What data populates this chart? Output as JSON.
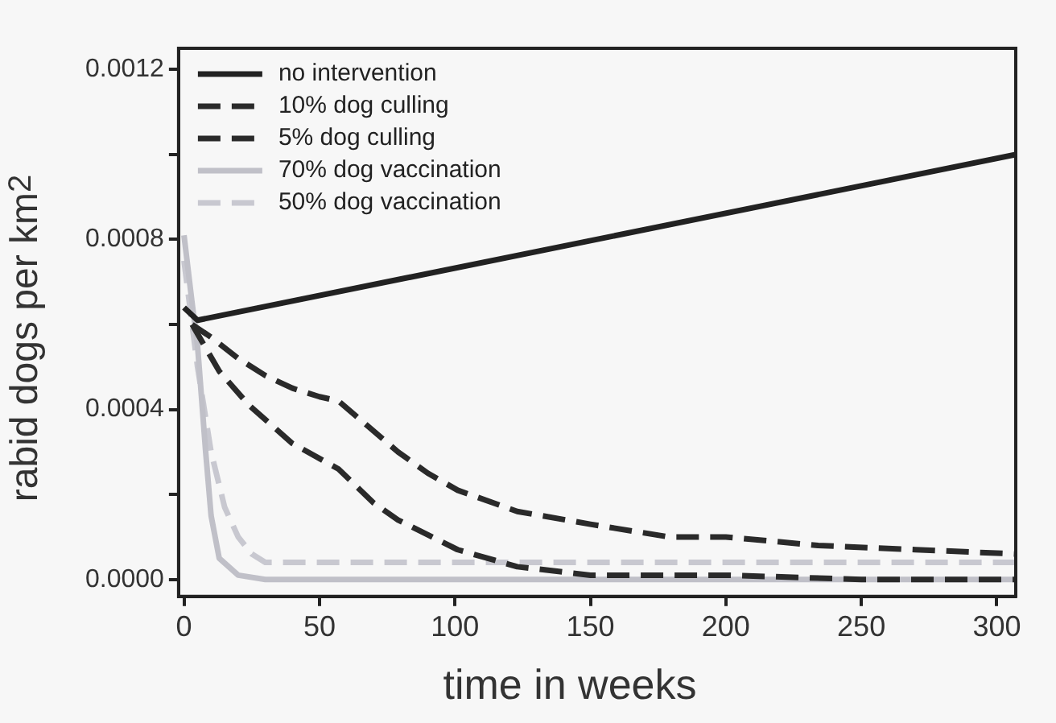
{
  "chart_data": {
    "type": "line",
    "xlabel": "time in weeks",
    "ylabel": "rabid dogs per km$^{2}$",
    "xlim": [
      -2,
      307
    ],
    "xticks": [
      0,
      50,
      100,
      150,
      200,
      250,
      300
    ],
    "ylim": [
      -4e-05,
      0.00125
    ],
    "yticks": [
      {
        "value": 0,
        "label": "0.0000"
      },
      {
        "value": 0.0002,
        "label": null
      },
      {
        "value": 0.0004,
        "label": "0.0004"
      },
      {
        "value": 0.0006,
        "label": null
      },
      {
        "value": 0.0008,
        "label": "0.0008"
      },
      {
        "value": 0.001,
        "label": null
      },
      {
        "value": 0.0012,
        "label": "0.0012"
      }
    ],
    "grid": false,
    "legend": "top left",
    "marker": "none",
    "series": [
      {
        "name": "no intervention",
        "color": "#222222",
        "line_style": "solid",
        "x": [
          0,
          5,
          307
        ],
        "values": [
          0.00064,
          0.00061,
          0.001
        ]
      },
      {
        "name": "10% dog culling",
        "color": "#2a2a2a",
        "line_style": "dashed",
        "x": [
          3,
          13,
          24,
          40,
          57,
          70,
          79,
          101,
          123,
          150,
          200,
          250,
          307
        ],
        "values": [
          0.0006,
          0.00049,
          0.00041,
          0.00032,
          0.00026,
          0.00018,
          0.00014,
          7e-05,
          3e-05,
          1e-05,
          1e-05,
          0,
          0
        ]
      },
      {
        "name": "5% dog culling",
        "color": "#2a2a2a",
        "line_style": "dashed",
        "x": [
          3,
          10,
          20,
          30,
          40,
          50,
          57,
          68,
          79,
          90,
          101,
          123,
          150,
          179,
          200,
          234,
          270,
          307
        ],
        "values": [
          0.0006,
          0.00057,
          0.00052,
          0.00048,
          0.00045,
          0.00043,
          0.00042,
          0.00036,
          0.0003,
          0.00025,
          0.00021,
          0.00016,
          0.00013,
          0.0001,
          0.0001,
          8e-05,
          7e-05,
          6e-05
        ]
      },
      {
        "name": "70% dog vaccination",
        "color": "#c0c0c8",
        "line_style": "solid",
        "x": [
          0,
          3,
          5,
          8,
          10,
          13,
          20,
          30,
          50,
          100,
          200,
          307
        ],
        "values": [
          0.00081,
          0.00065,
          0.00055,
          0.0003,
          0.00015,
          5e-05,
          1e-05,
          0,
          0,
          0,
          0,
          0
        ]
      },
      {
        "name": "50% dog vaccination",
        "color": "#c8c8d0",
        "line_style": "dashed",
        "x": [
          0,
          5,
          10,
          15,
          20,
          25,
          30,
          40,
          100,
          200,
          307
        ],
        "values": [
          0.00075,
          0.0005,
          0.0003,
          0.00017,
          0.0001,
          6e-05,
          4e-05,
          4e-05,
          4e-05,
          4e-05,
          4e-05
        ]
      }
    ]
  }
}
